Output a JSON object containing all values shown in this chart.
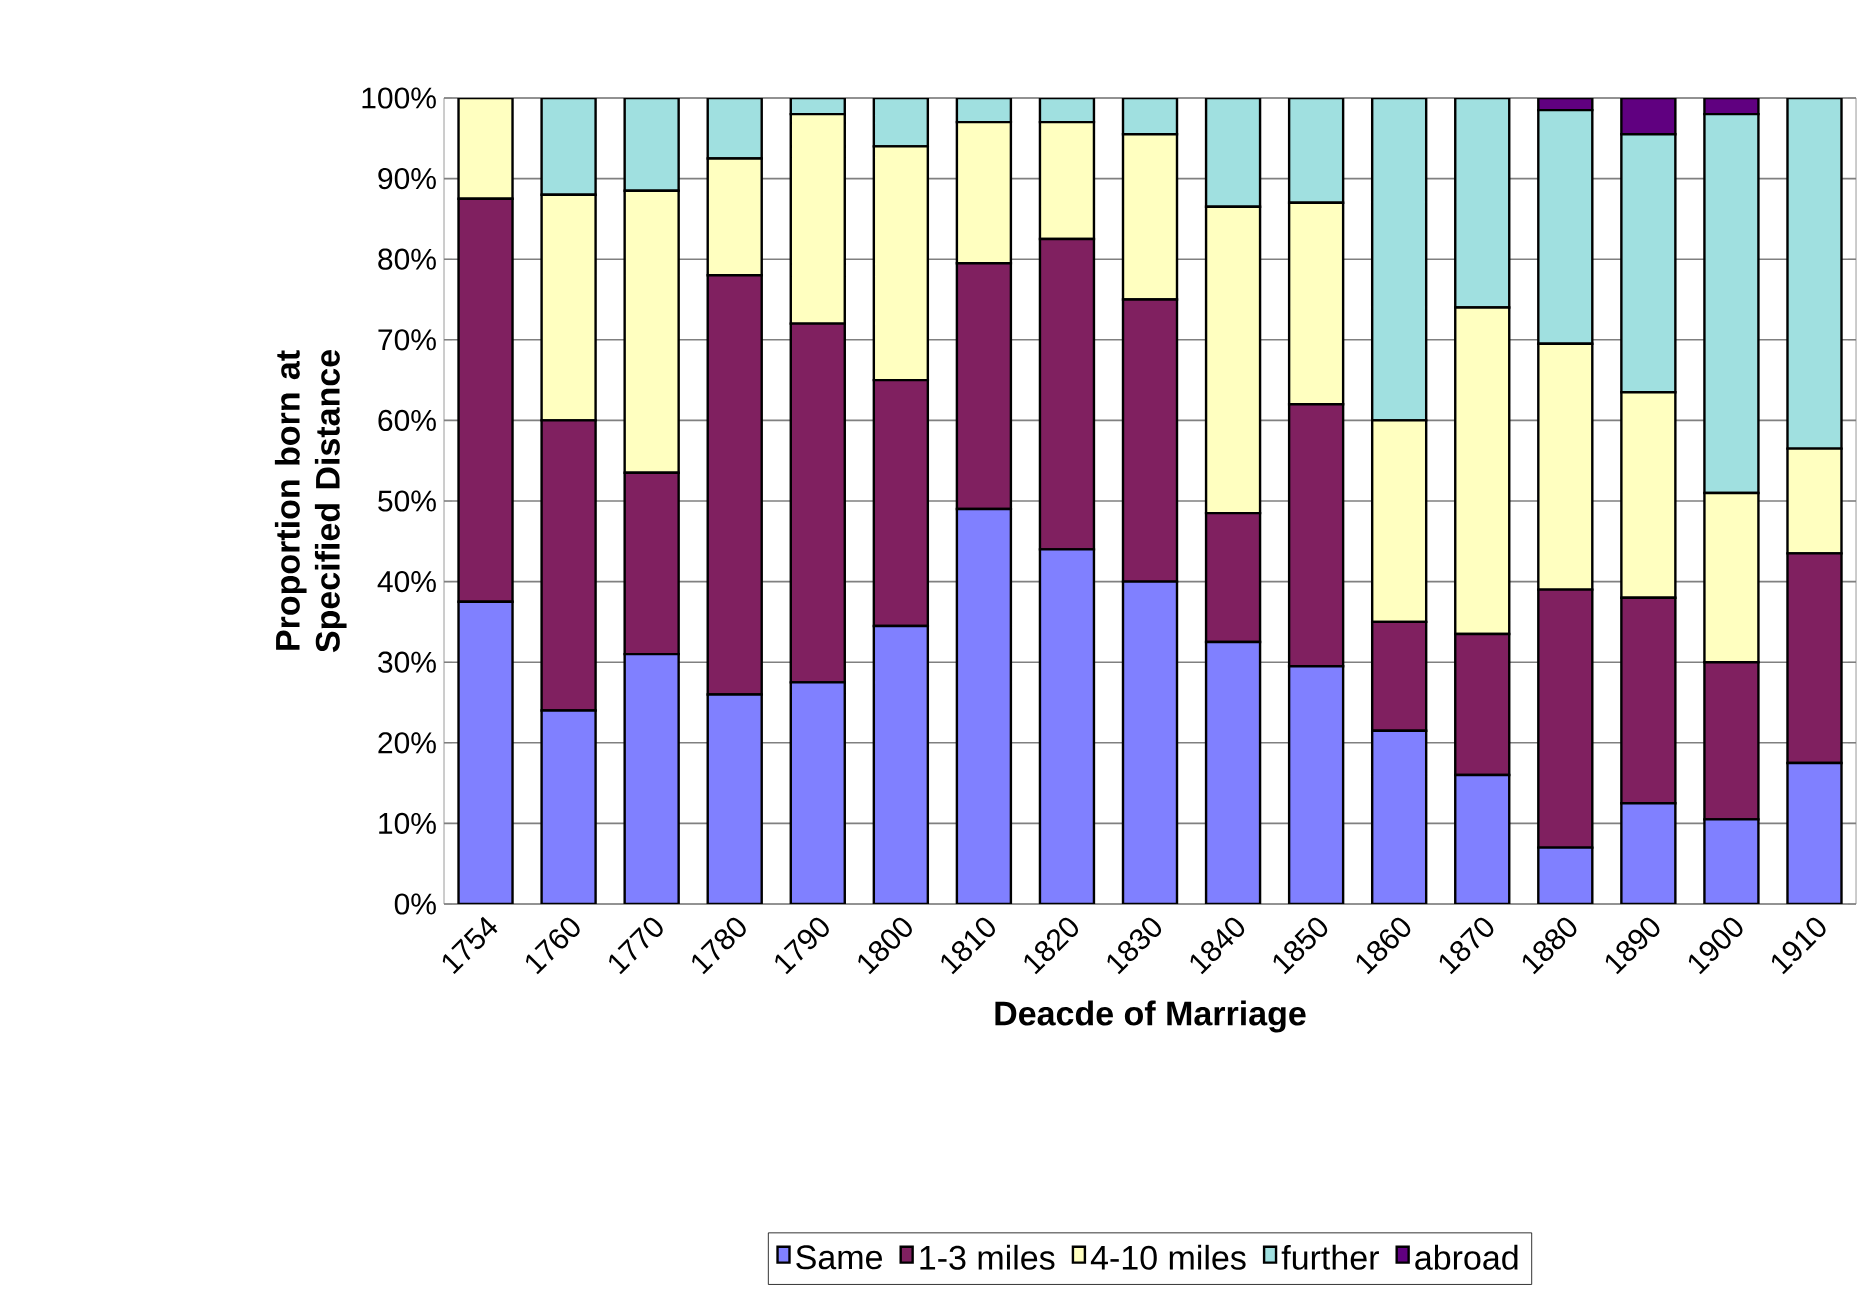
{
  "chart_data": {
    "type": "bar",
    "stacked": true,
    "xlabel": "Deacde of Marriage",
    "ylabel": "Proportion born at Specified Distance",
    "categories": [
      "1754",
      "1760",
      "1770",
      "1780",
      "1790",
      "1800",
      "1810",
      "1820",
      "1830",
      "1840",
      "1850",
      "1860",
      "1870",
      "1880",
      "1890",
      "1900",
      "1910"
    ],
    "ylim": [
      0,
      100
    ],
    "yticks": [
      {
        "value": 0,
        "label": "0%"
      },
      {
        "value": 10,
        "label": "10%"
      },
      {
        "value": 20,
        "label": "20%"
      },
      {
        "value": 30,
        "label": "30%"
      },
      {
        "value": 40,
        "label": "40%"
      },
      {
        "value": 50,
        "label": "50%"
      },
      {
        "value": 60,
        "label": "60%"
      },
      {
        "value": 70,
        "label": "70%"
      },
      {
        "value": 80,
        "label": "80%"
      },
      {
        "value": 90,
        "label": "90%"
      },
      {
        "value": 100,
        "label": "100%"
      }
    ],
    "grid": "y",
    "legend": "bottom",
    "series": [
      {
        "name": "Same",
        "color": "#8080ff",
        "values": [
          37.5,
          24,
          31,
          26,
          27.5,
          34.5,
          49,
          44,
          40,
          32.5,
          29.5,
          21.5,
          16,
          7,
          12.5,
          10.5,
          17.5
        ]
      },
      {
        "name": "1-3 miles",
        "color": "#802060",
        "values": [
          50,
          36,
          22.5,
          52,
          44.5,
          30.5,
          30.5,
          38.5,
          35,
          16,
          32.5,
          13.5,
          17.5,
          32,
          25.5,
          19.5,
          26
        ]
      },
      {
        "name": "4-10 miles",
        "color": "#ffffc0",
        "values": [
          12.5,
          28,
          35,
          14.5,
          26,
          29,
          17.5,
          14.5,
          20.5,
          38,
          25,
          25,
          40.5,
          30.5,
          25.5,
          21,
          13
        ]
      },
      {
        "name": "further",
        "color": "#a0e0e0",
        "values": [
          0,
          12,
          11.5,
          7.5,
          2,
          6,
          3,
          3,
          4.5,
          13.5,
          13,
          40,
          26,
          29,
          32,
          47,
          43.5
        ]
      },
      {
        "name": "abroad",
        "color": "#600080",
        "values": [
          0,
          0,
          0,
          0,
          0,
          0,
          0,
          0,
          0,
          0,
          0,
          0,
          0,
          1.5,
          4.5,
          2,
          0
        ]
      }
    ]
  }
}
